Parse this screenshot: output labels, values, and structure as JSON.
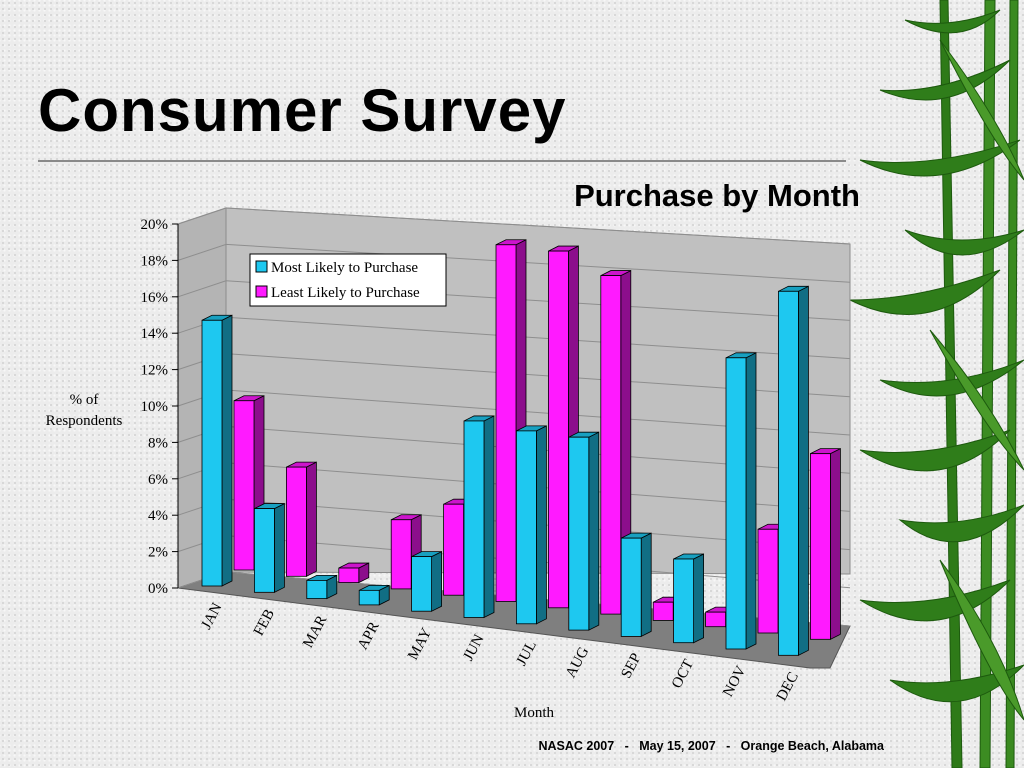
{
  "slide": {
    "title": "Consumer Survey",
    "footer": "NASAC 2007   -   May 15, 2007   -   Orange Beach, Alabama"
  },
  "colors": {
    "most_likely": "#1ec8f0",
    "least_likely": "#ff1aff",
    "back_wall": "#c0c0c0",
    "floor": "#7f7f7f"
  },
  "chart_data": {
    "type": "bar",
    "title": "Purchase by Month",
    "xlabel": "Month",
    "ylabel": "% of Respondents",
    "ylim": [
      0,
      20
    ],
    "yticks": [
      "0%",
      "2%",
      "4%",
      "6%",
      "8%",
      "10%",
      "12%",
      "14%",
      "16%",
      "18%",
      "20%"
    ],
    "grid": true,
    "legend_position": "top-left",
    "categories": [
      "JAN",
      "FEB",
      "MAR",
      "APR",
      "MAY",
      "JUN",
      "JUL",
      "AUG",
      "SEP",
      "OCT",
      "NOV",
      "DEC"
    ],
    "series": [
      {
        "name": "Most Likely to Purchase",
        "values": [
          14.6,
          4.6,
          1.0,
          0.8,
          3.0,
          10.8,
          10.6,
          10.6,
          5.4,
          4.6,
          16.0,
          20.0
        ]
      },
      {
        "name": "Least Likely to Purchase",
        "values": [
          9.3,
          6.0,
          0.8,
          3.8,
          5.0,
          19.6,
          19.6,
          18.6,
          1.0,
          0.8,
          5.7,
          10.2
        ]
      }
    ]
  }
}
